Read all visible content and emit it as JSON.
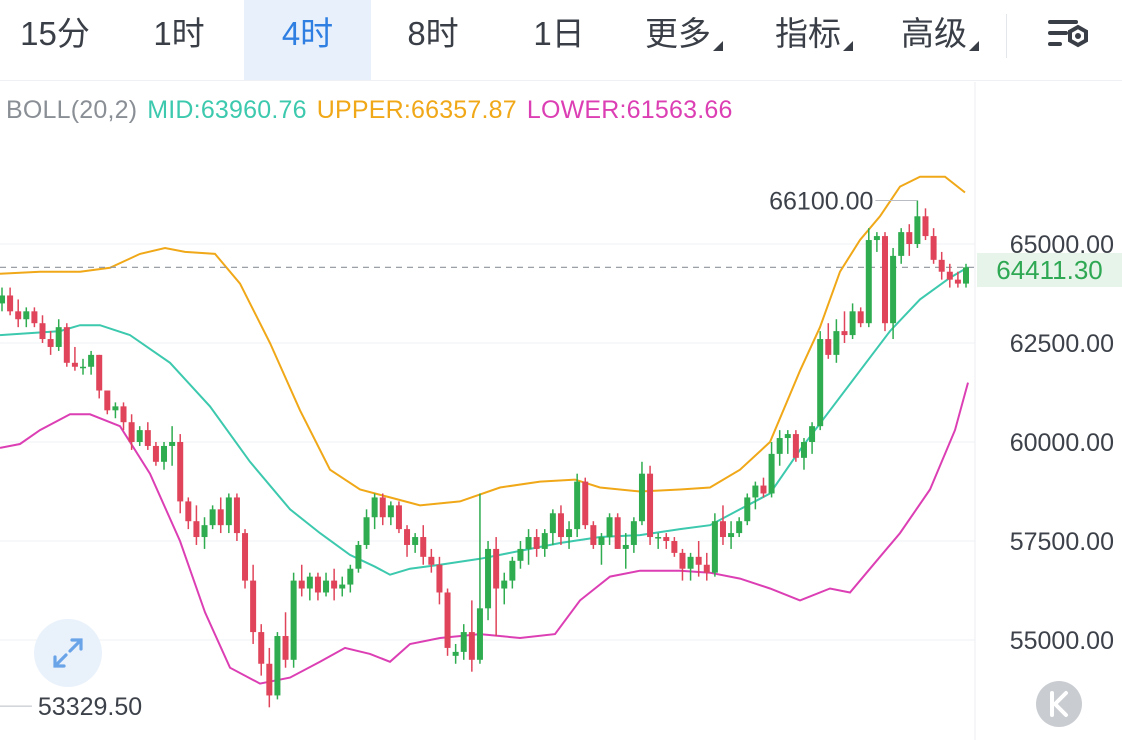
{
  "toolbar": {
    "tabs": [
      {
        "label": "15分",
        "active": false
      },
      {
        "label": "1时",
        "active": false
      },
      {
        "label": "4时",
        "active": true
      },
      {
        "label": "8时",
        "active": false
      },
      {
        "label": "1日",
        "active": false
      },
      {
        "label": "更多",
        "active": false,
        "dropdown": true
      },
      {
        "label": "指标",
        "active": false,
        "dropdown": true
      },
      {
        "label": "高级",
        "active": false,
        "dropdown": true
      }
    ],
    "settings_icon": "chart-settings-icon"
  },
  "legend": {
    "indicator": "BOLL(20,2)",
    "mid": "MID:63960.76",
    "upper": "UPPER:66357.87",
    "lower": "LOWER:61563.66"
  },
  "colors": {
    "up": "#2eac4f",
    "down": "#e0445a",
    "mid": "#3cc9ae",
    "upper": "#f0a818",
    "lower": "#dc3fb4",
    "accent": "#2f7fe3"
  },
  "chart_data": {
    "type": "candlestick",
    "indicator": "BOLL(20,2)",
    "y_ticks": [
      "65000.00",
      "62500.00",
      "60000.00",
      "57500.00",
      "55000.00"
    ],
    "ylim": [
      52650,
      67400
    ],
    "current_price": "64411.30",
    "high_marker": "66100.00",
    "low_marker": "53329.50",
    "candles": [
      [
        63500,
        63900,
        63300,
        63700
      ],
      [
        63700,
        63900,
        63200,
        63300
      ],
      [
        63300,
        63600,
        62900,
        63100
      ],
      [
        63100,
        63400,
        62900,
        63300
      ],
      [
        63300,
        63400,
        62900,
        63000
      ],
      [
        63000,
        63200,
        62500,
        62600
      ],
      [
        62600,
        62800,
        62200,
        62400
      ],
      [
        62400,
        63100,
        62300,
        62900
      ],
      [
        62900,
        63000,
        61900,
        62000
      ],
      [
        62000,
        62400,
        61800,
        61900
      ],
      [
        61900,
        62100,
        61700,
        61900
      ],
      [
        61900,
        62300,
        61700,
        62200
      ],
      [
        62200,
        62200,
        61100,
        61300
      ],
      [
        61300,
        61300,
        60700,
        60800
      ],
      [
        60800,
        61000,
        60600,
        60900
      ],
      [
        60900,
        61000,
        60300,
        60500
      ],
      [
        60500,
        60700,
        59800,
        60000
      ],
      [
        60000,
        60400,
        59900,
        60300
      ],
      [
        60300,
        60500,
        59800,
        59900
      ],
      [
        59900,
        60000,
        59400,
        59500
      ],
      [
        59500,
        60000,
        59300,
        59900
      ],
      [
        59900,
        60400,
        59400,
        60000
      ],
      [
        60000,
        60200,
        58200,
        58500
      ],
      [
        58500,
        58600,
        57800,
        58000
      ],
      [
        58000,
        58400,
        57400,
        57600
      ],
      [
        57600,
        58100,
        57300,
        57900
      ],
      [
        57900,
        58400,
        57800,
        58300
      ],
      [
        58300,
        58600,
        57700,
        57900
      ],
      [
        57900,
        58700,
        57700,
        58600
      ],
      [
        58600,
        58700,
        57500,
        57700
      ],
      [
        57700,
        57800,
        56300,
        56500
      ],
      [
        56500,
        56900,
        54900,
        55200
      ],
      [
        55200,
        55400,
        54100,
        54400
      ],
      [
        54400,
        54800,
        53300,
        53600
      ],
      [
        53600,
        55200,
        53500,
        55100
      ],
      [
        55100,
        55700,
        54300,
        54500
      ],
      [
        54500,
        56700,
        54300,
        56500
      ],
      [
        56500,
        56900,
        56100,
        56300
      ],
      [
        56300,
        56700,
        56000,
        56600
      ],
      [
        56600,
        56700,
        56000,
        56200
      ],
      [
        56200,
        56700,
        56100,
        56500
      ],
      [
        56500,
        56800,
        56000,
        56300
      ],
      [
        56300,
        56600,
        56100,
        56400
      ],
      [
        56400,
        56900,
        56200,
        56800
      ],
      [
        56800,
        57500,
        56700,
        57400
      ],
      [
        57400,
        58300,
        57300,
        58100
      ],
      [
        58100,
        58700,
        57800,
        58600
      ],
      [
        58600,
        58700,
        57900,
        58100
      ],
      [
        58100,
        58500,
        57900,
        58400
      ],
      [
        58400,
        58500,
        57700,
        57800
      ],
      [
        57800,
        57900,
        57100,
        57400
      ],
      [
        57400,
        57700,
        57200,
        57600
      ],
      [
        57600,
        57900,
        56900,
        57100
      ],
      [
        57100,
        57300,
        56700,
        56900
      ],
      [
        56900,
        57100,
        55900,
        56200
      ],
      [
        56200,
        56300,
        54600,
        54800
      ],
      [
        54600,
        54900,
        54400,
        54700
      ],
      [
        54700,
        55400,
        54500,
        55200
      ],
      [
        55200,
        56000,
        54200,
        54500
      ],
      [
        54500,
        58700,
        54400,
        55800
      ],
      [
        55800,
        57500,
        55500,
        57300
      ],
      [
        57300,
        57600,
        55100,
        56300
      ],
      [
        56300,
        56700,
        55900,
        56500
      ],
      [
        56500,
        57100,
        56300,
        57000
      ],
      [
        57000,
        57500,
        56800,
        57300
      ],
      [
        57300,
        57800,
        56900,
        57600
      ],
      [
        57600,
        57800,
        57100,
        57300
      ],
      [
        57300,
        57800,
        57100,
        57700
      ],
      [
        57700,
        58300,
        57400,
        58200
      ],
      [
        58200,
        58400,
        57400,
        57600
      ],
      [
        57600,
        58000,
        57300,
        57800
      ],
      [
        57800,
        59200,
        57600,
        59000
      ],
      [
        59000,
        59100,
        57800,
        57900
      ],
      [
        57900,
        58000,
        57300,
        57400
      ],
      [
        57400,
        57700,
        56900,
        57600
      ],
      [
        57600,
        58200,
        57400,
        58100
      ],
      [
        58100,
        58200,
        57300,
        57300
      ],
      [
        57300,
        57700,
        56800,
        57400
      ],
      [
        57400,
        58100,
        57200,
        58000
      ],
      [
        58000,
        59500,
        57900,
        59200
      ],
      [
        59200,
        59400,
        57400,
        57600
      ],
      [
        57600,
        57700,
        57300,
        57600
      ],
      [
        57600,
        57700,
        57300,
        57500
      ],
      [
        57500,
        57600,
        57100,
        57200
      ],
      [
        57200,
        57300,
        56500,
        56800
      ],
      [
        56800,
        57200,
        56500,
        57100
      ],
      [
        57100,
        57500,
        56600,
        56900
      ],
      [
        56900,
        57200,
        56500,
        56700
      ],
      [
        56700,
        58200,
        56600,
        58000
      ],
      [
        58000,
        58400,
        57400,
        57600
      ],
      [
        57600,
        58000,
        57300,
        57700
      ],
      [
        57700,
        58100,
        57600,
        58000
      ],
      [
        58000,
        58700,
        57900,
        58600
      ],
      [
        58600,
        59000,
        58300,
        58900
      ],
      [
        58900,
        59100,
        58600,
        58700
      ],
      [
        58700,
        60000,
        58600,
        59700
      ],
      [
        59700,
        60300,
        59400,
        60100
      ],
      [
        60100,
        60300,
        59700,
        60200
      ],
      [
        60200,
        60300,
        59500,
        59600
      ],
      [
        59600,
        60100,
        59300,
        60000
      ],
      [
        60000,
        60500,
        59700,
        60400
      ],
      [
        60400,
        62800,
        60300,
        62600
      ],
      [
        62600,
        63000,
        62100,
        62200
      ],
      [
        62200,
        63100,
        62000,
        62800
      ],
      [
        62800,
        63300,
        62500,
        62700
      ],
      [
        62700,
        63500,
        62600,
        63300
      ],
      [
        63300,
        63400,
        62900,
        63000
      ],
      [
        63000,
        65400,
        62900,
        65100
      ],
      [
        65100,
        65300,
        64800,
        65200
      ],
      [
        65200,
        65300,
        62800,
        63000
      ],
      [
        63000,
        64900,
        62600,
        64700
      ],
      [
        64700,
        65400,
        64500,
        65300
      ],
      [
        65300,
        65500,
        64700,
        65000
      ],
      [
        65000,
        66100,
        64900,
        65700
      ],
      [
        65700,
        65900,
        65100,
        65200
      ],
      [
        65200,
        65400,
        64500,
        64600
      ],
      [
        64600,
        64800,
        64100,
        64300
      ],
      [
        64300,
        64500,
        63900,
        64100
      ],
      [
        64100,
        64300,
        63900,
        64000
      ],
      [
        64000,
        64500,
        63900,
        64411
      ]
    ],
    "boll_mid": [
      [
        0,
        62700
      ],
      [
        60,
        62800
      ],
      [
        80,
        62950
      ],
      [
        100,
        62950
      ],
      [
        130,
        62700
      ],
      [
        170,
        62000
      ],
      [
        210,
        60900
      ],
      [
        250,
        59500
      ],
      [
        290,
        58300
      ],
      [
        320,
        57700
      ],
      [
        350,
        57150
      ],
      [
        375,
        56850
      ],
      [
        390,
        56650
      ],
      [
        410,
        56800
      ],
      [
        440,
        56900
      ],
      [
        480,
        57050
      ],
      [
        520,
        57250
      ],
      [
        560,
        57450
      ],
      [
        600,
        57600
      ],
      [
        640,
        57650
      ],
      [
        680,
        57800
      ],
      [
        710,
        57900
      ],
      [
        740,
        58300
      ],
      [
        770,
        58700
      ],
      [
        800,
        59800
      ],
      [
        830,
        60800
      ],
      [
        860,
        61800
      ],
      [
        890,
        62800
      ],
      [
        920,
        63600
      ],
      [
        950,
        64150
      ],
      [
        968,
        64411
      ]
    ],
    "boll_upper": [
      [
        0,
        64250
      ],
      [
        40,
        64300
      ],
      [
        80,
        64300
      ],
      [
        110,
        64400
      ],
      [
        140,
        64750
      ],
      [
        165,
        64900
      ],
      [
        185,
        64800
      ],
      [
        215,
        64750
      ],
      [
        240,
        64000
      ],
      [
        270,
        62500
      ],
      [
        300,
        60800
      ],
      [
        330,
        59300
      ],
      [
        360,
        58800
      ],
      [
        390,
        58600
      ],
      [
        420,
        58400
      ],
      [
        460,
        58500
      ],
      [
        500,
        58850
      ],
      [
        540,
        59000
      ],
      [
        575,
        59050
      ],
      [
        600,
        58850
      ],
      [
        640,
        58750
      ],
      [
        680,
        58800
      ],
      [
        710,
        58850
      ],
      [
        740,
        59300
      ],
      [
        770,
        60000
      ],
      [
        800,
        61800
      ],
      [
        820,
        62900
      ],
      [
        840,
        64300
      ],
      [
        860,
        65100
      ],
      [
        880,
        65700
      ],
      [
        900,
        66450
      ],
      [
        920,
        66700
      ],
      [
        945,
        66700
      ],
      [
        965,
        66300
      ]
    ],
    "boll_lower": [
      [
        0,
        59850
      ],
      [
        20,
        59950
      ],
      [
        40,
        60300
      ],
      [
        70,
        60700
      ],
      [
        90,
        60700
      ],
      [
        120,
        60400
      ],
      [
        150,
        59200
      ],
      [
        180,
        57500
      ],
      [
        205,
        55700
      ],
      [
        230,
        54300
      ],
      [
        260,
        53900
      ],
      [
        290,
        54050
      ],
      [
        320,
        54450
      ],
      [
        345,
        54800
      ],
      [
        370,
        54650
      ],
      [
        390,
        54450
      ],
      [
        410,
        54900
      ],
      [
        440,
        55050
      ],
      [
        480,
        55150
      ],
      [
        520,
        55050
      ],
      [
        555,
        55150
      ],
      [
        580,
        56000
      ],
      [
        610,
        56600
      ],
      [
        640,
        56750
      ],
      [
        680,
        56750
      ],
      [
        710,
        56700
      ],
      [
        740,
        56550
      ],
      [
        770,
        56300
      ],
      [
        800,
        56000
      ],
      [
        830,
        56300
      ],
      [
        850,
        56200
      ],
      [
        870,
        56800
      ],
      [
        900,
        57700
      ],
      [
        930,
        58800
      ],
      [
        955,
        60300
      ],
      [
        968,
        61500
      ]
    ]
  }
}
